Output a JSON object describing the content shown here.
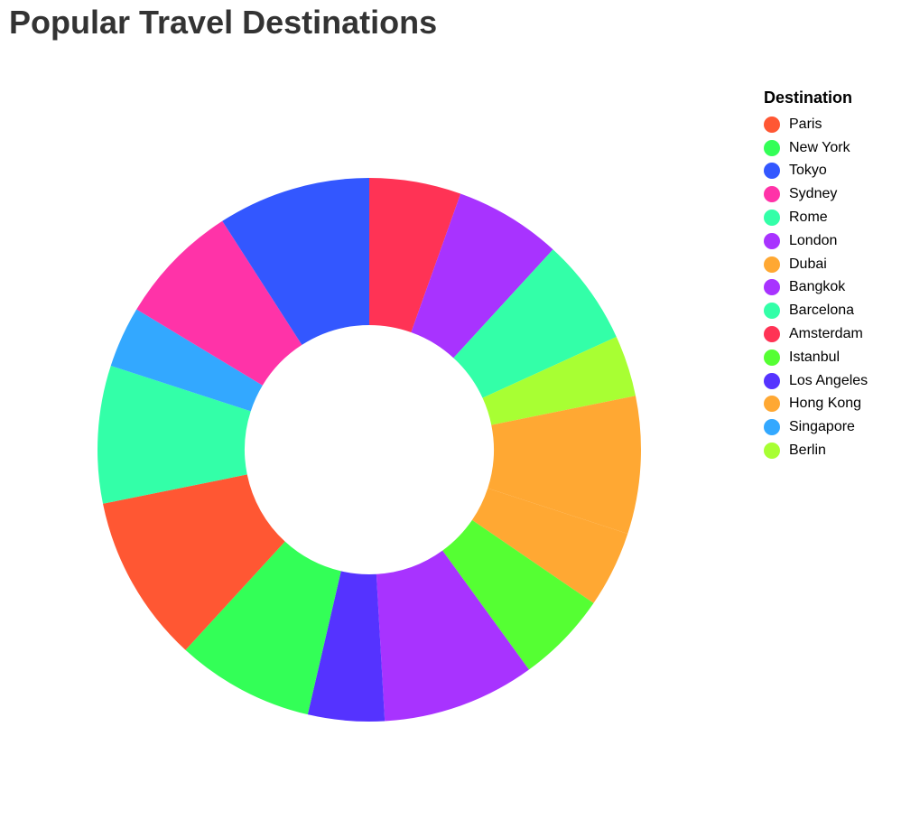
{
  "chart_data": {
    "type": "pie",
    "title": "Popular Travel Destinations",
    "legend_title": "Destination",
    "legend_placement": "right",
    "donut": true,
    "slices": [
      {
        "label": "Amsterdam",
        "value": 6,
        "color": "#ff3355"
      },
      {
        "label": "Bangkok",
        "value": 7,
        "color": "#a833ff"
      },
      {
        "label": "Barcelona",
        "value": 7,
        "color": "#33ffa8"
      },
      {
        "label": "Berlin",
        "value": 4,
        "color": "#a8ff33"
      },
      {
        "label": "Dubai",
        "value": 9,
        "color": "#ffa833"
      },
      {
        "label": "Hong Kong",
        "value": 5,
        "color": "#ffa833"
      },
      {
        "label": "Istanbul",
        "value": 6,
        "color": "#55ff33"
      },
      {
        "label": "London",
        "value": 10,
        "color": "#a833ff"
      },
      {
        "label": "Los Angeles",
        "value": 5,
        "color": "#5533ff"
      },
      {
        "label": "New York",
        "value": 9,
        "color": "#33ff57"
      },
      {
        "label": "Paris",
        "value": 11,
        "color": "#ff5733"
      },
      {
        "label": "Rome",
        "value": 9,
        "color": "#33ffa8"
      },
      {
        "label": "Singapore",
        "value": 4,
        "color": "#33a8ff"
      },
      {
        "label": "Sydney",
        "value": 8,
        "color": "#ff33a8"
      },
      {
        "label": "Tokyo",
        "value": 10,
        "color": "#3357ff"
      }
    ],
    "legend": [
      {
        "label": "Paris",
        "color": "#ff5733"
      },
      {
        "label": "New York",
        "color": "#33ff57"
      },
      {
        "label": "Tokyo",
        "color": "#3357ff"
      },
      {
        "label": "Sydney",
        "color": "#ff33a8"
      },
      {
        "label": "Rome",
        "color": "#33ffa8"
      },
      {
        "label": "London",
        "color": "#a833ff"
      },
      {
        "label": "Dubai",
        "color": "#ffa833"
      },
      {
        "label": "Bangkok",
        "color": "#a833ff"
      },
      {
        "label": "Barcelona",
        "color": "#33ffa8"
      },
      {
        "label": "Amsterdam",
        "color": "#ff3355"
      },
      {
        "label": "Istanbul",
        "color": "#55ff33"
      },
      {
        "label": "Los Angeles",
        "color": "#5533ff"
      },
      {
        "label": "Hong Kong",
        "color": "#ffa833"
      },
      {
        "label": "Singapore",
        "color": "#33a8ff"
      },
      {
        "label": "Berlin",
        "color": "#a8ff33"
      }
    ]
  }
}
